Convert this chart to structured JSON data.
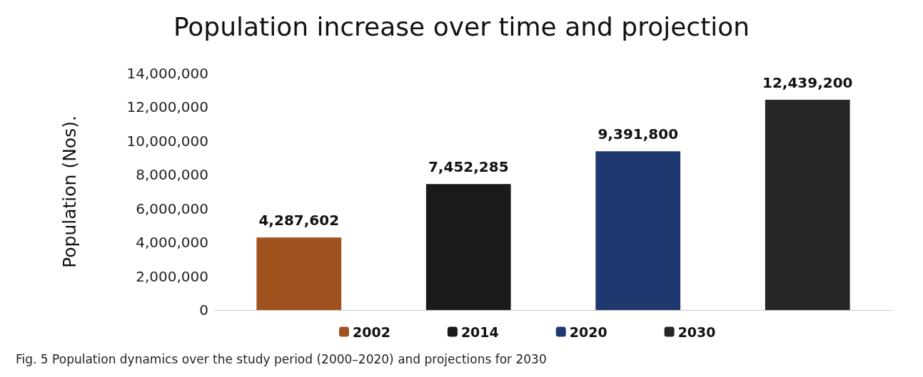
{
  "chart_data": {
    "type": "bar",
    "title": "Population increase over time and projection",
    "ylabel": "Population (Nos).",
    "categories": [
      null,
      null,
      null,
      null
    ],
    "series": [
      {
        "name": "2002",
        "color": "#a0521e",
        "values": [
          4287602,
          null,
          null,
          null
        ],
        "value_labels": [
          "4,287,602",
          null,
          null,
          null
        ]
      },
      {
        "name": "2014",
        "color": "#1a1a1a",
        "values": [
          null,
          7452285,
          null,
          null
        ],
        "value_labels": [
          null,
          "7,452,285",
          null,
          null
        ]
      },
      {
        "name": "2020",
        "color": "#1f3870",
        "values": [
          null,
          null,
          9391800,
          null
        ],
        "value_labels": [
          null,
          null,
          "9,391,800",
          null
        ]
      },
      {
        "name": "2030",
        "color": "#262626",
        "values": [
          null,
          null,
          null,
          12439200
        ],
        "value_labels": [
          null,
          null,
          null,
          "12,439,200"
        ]
      }
    ],
    "stacked": true,
    "ylim": [
      0,
      14000000
    ],
    "yticks": [
      0,
      {
        "value": 2000000,
        "label": "2,000,000"
      },
      {
        "value": 4000000,
        "label": "4,000,000"
      },
      {
        "value": 6000000,
        "label": "6,000,000"
      },
      {
        "value": 8000000,
        "label": "8,000,000"
      },
      {
        "value": 10000000,
        "label": "10,000,000"
      },
      {
        "value": 12000000,
        "label": "12,000,000"
      },
      {
        "value": 14000000,
        "label": "14,000,000"
      }
    ],
    "grid": false,
    "legend": "bottom",
    "annotations": [
      "Fig. 5 Population dynamics over the study period (2000–2020) and projections for 2030"
    ]
  }
}
